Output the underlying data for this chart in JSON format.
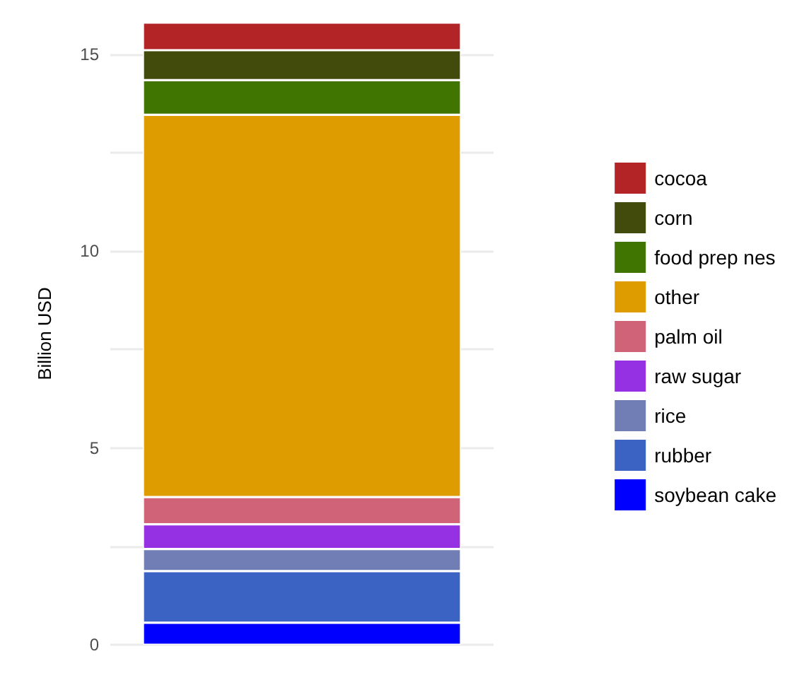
{
  "chart_data": {
    "type": "bar",
    "stacked": true,
    "ylabel": "Billion USD",
    "categories": [
      null
    ],
    "series": [
      {
        "name": "soybean cake",
        "color": "#0000ff",
        "values": [
          0.56
        ]
      },
      {
        "name": "rubber",
        "color": "#3b63c4",
        "values": [
          1.31
        ]
      },
      {
        "name": "rice",
        "color": "#707eb5",
        "values": [
          0.56
        ]
      },
      {
        "name": "raw sugar",
        "color": "#9530e3",
        "values": [
          0.63
        ]
      },
      {
        "name": "palm oil",
        "color": "#d06377",
        "values": [
          0.69
        ]
      },
      {
        "name": "other",
        "color": "#de9c00",
        "values": [
          9.71
        ]
      },
      {
        "name": "food prep nes",
        "color": "#3f7500",
        "values": [
          0.88
        ]
      },
      {
        "name": "corn",
        "color": "#424b0c",
        "values": [
          0.76
        ]
      },
      {
        "name": "cocoa",
        "color": "#b22426",
        "values": [
          0.7
        ]
      }
    ],
    "ylim": [
      0,
      15.8
    ],
    "yticks": [
      0,
      {
        "value": 2.5,
        "label": null
      },
      5,
      {
        "value": 7.5,
        "label": null
      },
      10,
      {
        "value": 12.5,
        "label": null
      },
      15
    ],
    "grid": "y",
    "legend": "right"
  }
}
